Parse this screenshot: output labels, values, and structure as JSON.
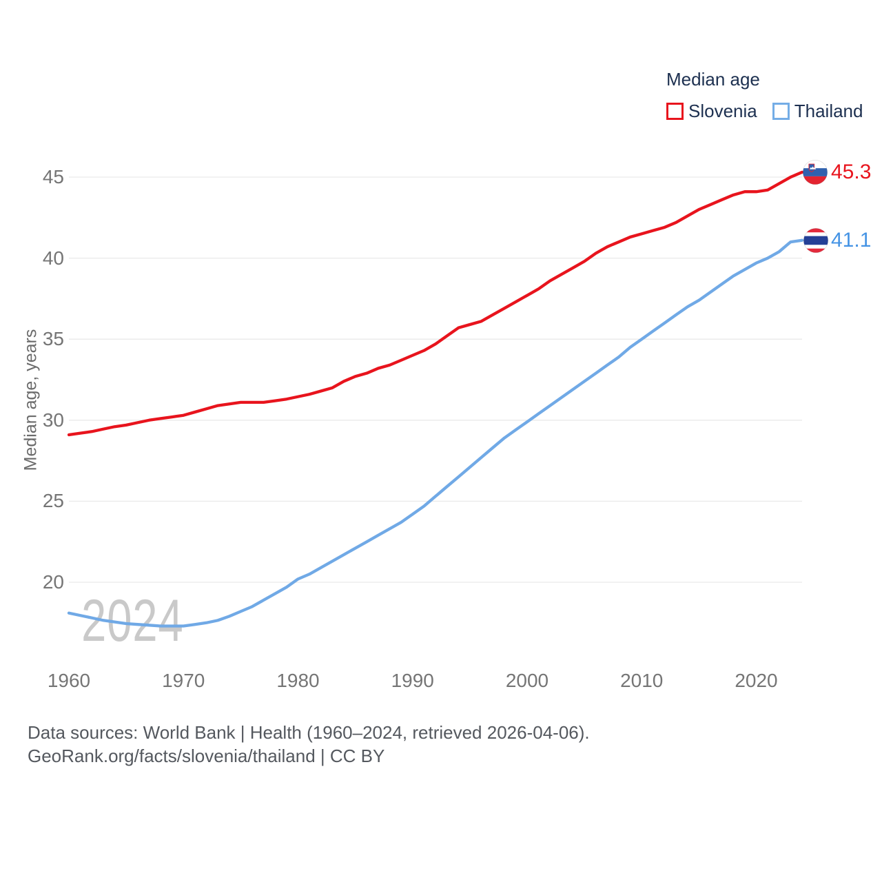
{
  "watermark": "2024",
  "legend": {
    "title": "Median age",
    "items": [
      {
        "label": "Slovenia",
        "color": "#e8141d"
      },
      {
        "label": "Thailand",
        "color": "#74ade6"
      }
    ]
  },
  "axes": {
    "y_title": "Median age, years",
    "y_ticks": [
      20,
      25,
      30,
      35,
      40,
      45
    ],
    "x_ticks": [
      1960,
      1970,
      1980,
      1990,
      2000,
      2010,
      2020
    ]
  },
  "end_markers": {
    "slovenia": {
      "value_label": "45.3",
      "color": "#e8141d",
      "flag": "slovenia-flag"
    },
    "thailand": {
      "value_label": "41.1",
      "color": "#4493e4",
      "flag": "thailand-flag"
    }
  },
  "footer": {
    "line1": "Data sources: World Bank | Health (1960–2024, retrieved 2026-04-06).",
    "line2": "GeoRank.org/facts/slovenia/thailand | CC BY"
  },
  "chart_data": {
    "type": "line",
    "title": "Median age",
    "ylabel": "Median age, years",
    "grid": true,
    "grid_color": "#e9e9e9",
    "legend_position": "top-right",
    "x_start": 1960,
    "x_end": 2024,
    "x_step": 1,
    "ylim": [
      16.5,
      47
    ],
    "yticks": [
      20,
      25,
      30,
      35,
      40,
      45
    ],
    "xticks": [
      1960,
      1970,
      1980,
      1990,
      2000,
      2010,
      2020
    ],
    "series": [
      {
        "name": "Slovenia",
        "color": "#e8141d",
        "end_value": 45.3,
        "end_label": "45.3",
        "values": [
          29.1,
          29.2,
          29.3,
          29.45,
          29.6,
          29.7,
          29.85,
          30.0,
          30.1,
          30.2,
          30.3,
          30.5,
          30.7,
          30.9,
          31.0,
          31.1,
          31.1,
          31.1,
          31.2,
          31.3,
          31.45,
          31.6,
          31.8,
          32.0,
          32.4,
          32.7,
          32.9,
          33.2,
          33.4,
          33.7,
          34.0,
          34.3,
          34.7,
          35.2,
          35.7,
          35.9,
          36.1,
          36.5,
          36.9,
          37.3,
          37.7,
          38.1,
          38.6,
          39.0,
          39.4,
          39.8,
          40.3,
          40.7,
          41.0,
          41.3,
          41.5,
          41.7,
          41.9,
          42.2,
          42.6,
          43.0,
          43.3,
          43.6,
          43.9,
          44.1,
          44.1,
          44.2,
          44.6,
          45.0,
          45.3
        ]
      },
      {
        "name": "Thailand",
        "color": "#70a9e6",
        "end_value": 41.1,
        "end_label": "41.1",
        "values": [
          18.1,
          17.95,
          17.8,
          17.65,
          17.55,
          17.45,
          17.4,
          17.35,
          17.3,
          17.3,
          17.3,
          17.4,
          17.5,
          17.65,
          17.9,
          18.2,
          18.5,
          18.9,
          19.3,
          19.7,
          20.2,
          20.5,
          20.9,
          21.3,
          21.7,
          22.1,
          22.5,
          22.9,
          23.3,
          23.7,
          24.2,
          24.7,
          25.3,
          25.9,
          26.5,
          27.1,
          27.7,
          28.3,
          28.9,
          29.4,
          29.9,
          30.4,
          30.9,
          31.4,
          31.9,
          32.4,
          32.9,
          33.4,
          33.9,
          34.5,
          35.0,
          35.5,
          36.0,
          36.5,
          37.0,
          37.4,
          37.9,
          38.4,
          38.9,
          39.3,
          39.7,
          40.0,
          40.4,
          41.0,
          41.1
        ]
      }
    ]
  }
}
